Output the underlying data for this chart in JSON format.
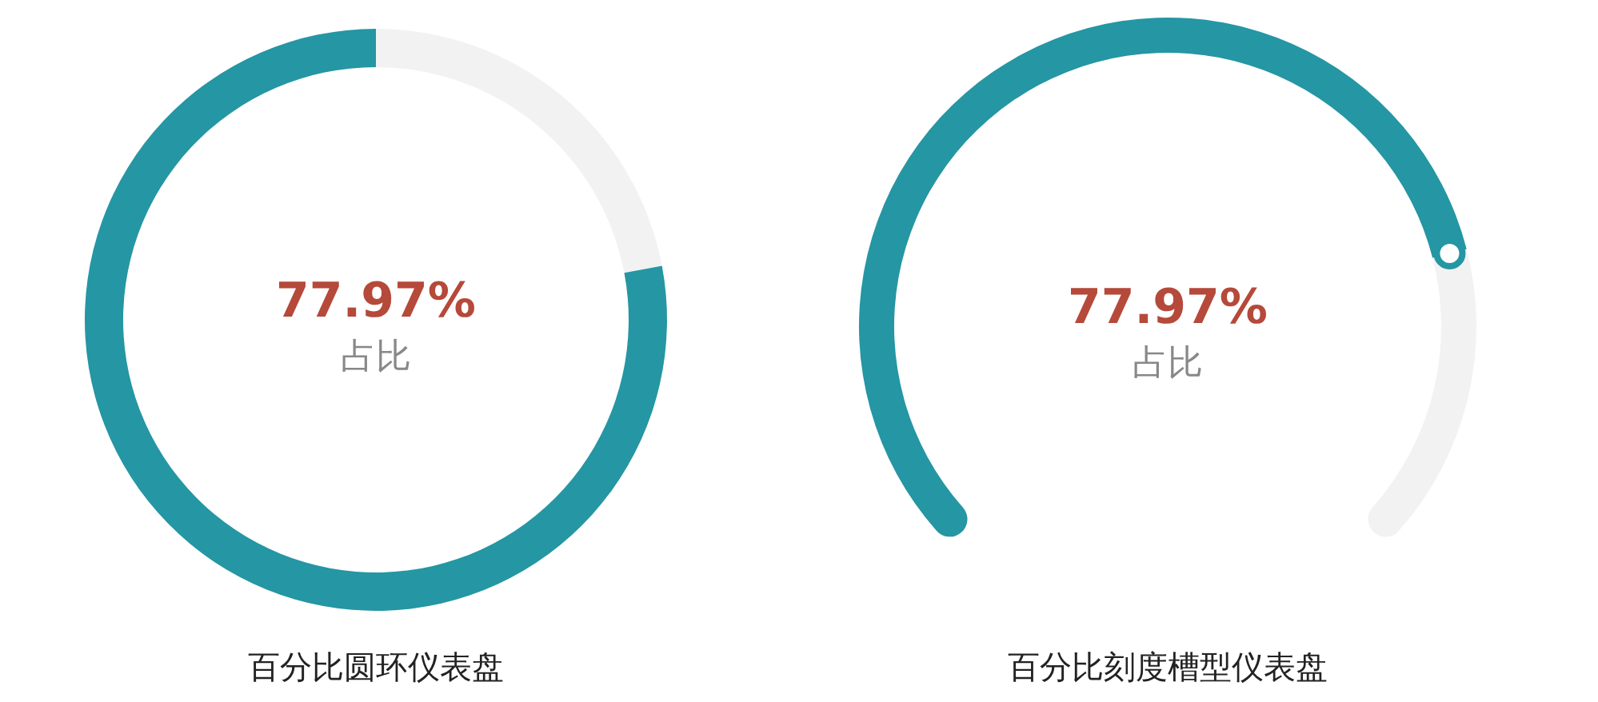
{
  "chart_data": [
    {
      "type": "donut",
      "title": "百分比圆环仪表盘",
      "categories": [
        "占比",
        null
      ],
      "values": [
        77.97,
        22.03
      ],
      "colors": [
        "#2596a3",
        "#f2f2f2"
      ],
      "value_labels": [
        "77.97%",
        null
      ]
    },
    {
      "type": "donut",
      "title": "百分比刻度槽型仪表盘",
      "categories": [
        "占比",
        null
      ],
      "values": [
        77.97,
        22.03
      ],
      "colors": [
        "#2596a3",
        "#f2f2f2"
      ],
      "value_labels": [
        "77.97%",
        null
      ]
    }
  ]
}
